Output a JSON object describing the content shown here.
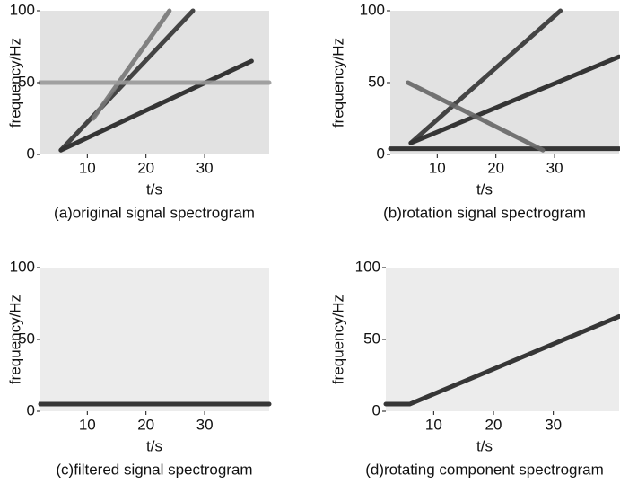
{
  "chart_data": [
    {
      "type": "spectrogram",
      "caption": "(a)original signal spectrogram",
      "xlabel": "t/s",
      "ylabel": "frequency/Hz",
      "xlim": [
        2,
        41
      ],
      "ylim": [
        0,
        100
      ],
      "xticks": [
        10,
        20,
        30
      ],
      "yticks": [
        0,
        50,
        100
      ],
      "background": "#e2e2e2",
      "series": [
        {
          "color": "#222222",
          "x": [
            5.5,
            38
          ],
          "values": [
            3,
            65
          ]
        },
        {
          "color": "#333333",
          "x": [
            5.5,
            28
          ],
          "values": [
            3,
            100
          ]
        },
        {
          "color": "#777777",
          "x": [
            11,
            24
          ],
          "values": [
            25,
            100
          ]
        },
        {
          "color": "#999999",
          "x": [
            2,
            41
          ],
          "values": [
            50,
            50
          ]
        }
      ]
    },
    {
      "type": "spectrogram",
      "caption": "(b)rotation signal spectrogram",
      "xlabel": "t/s",
      "ylabel": "frequency/Hz",
      "xlim": [
        2,
        41
      ],
      "ylim": [
        0,
        100
      ],
      "xticks": [
        10,
        20,
        30
      ],
      "yticks": [
        0,
        50,
        100
      ],
      "background": "#e2e2e2",
      "series": [
        {
          "color": "#222222",
          "x": [
            5.5,
            41
          ],
          "values": [
            8,
            68
          ]
        },
        {
          "color": "#333333",
          "x": [
            5.5,
            31
          ],
          "values": [
            8,
            100
          ]
        },
        {
          "color": "#222222",
          "x": [
            2,
            41
          ],
          "values": [
            4,
            4
          ]
        },
        {
          "color": "#666666",
          "x": [
            5,
            28
          ],
          "values": [
            50,
            3
          ]
        }
      ]
    },
    {
      "type": "spectrogram",
      "caption": "(c)filtered signal spectrogram",
      "xlabel": "t/s",
      "ylabel": "frequency/Hz",
      "xlim": [
        2,
        41
      ],
      "ylim": [
        0,
        100
      ],
      "xticks": [
        10,
        20,
        30
      ],
      "yticks": [
        0,
        50,
        100
      ],
      "background": "#ececec",
      "series": [
        {
          "color": "#222222",
          "x": [
            2,
            41
          ],
          "values": [
            5,
            5
          ]
        }
      ]
    },
    {
      "type": "spectrogram",
      "caption": "(d)rotating component spectrogram",
      "xlabel": "t/s",
      "ylabel": "frequency/Hz",
      "xlim": [
        2,
        41
      ],
      "ylim": [
        0,
        100
      ],
      "xticks": [
        10,
        20,
        30
      ],
      "yticks": [
        0,
        50,
        100
      ],
      "background": "#ececec",
      "series": [
        {
          "color": "#222222",
          "x": [
            2,
            6,
            41
          ],
          "values": [
            5,
            5,
            66
          ]
        }
      ]
    }
  ]
}
